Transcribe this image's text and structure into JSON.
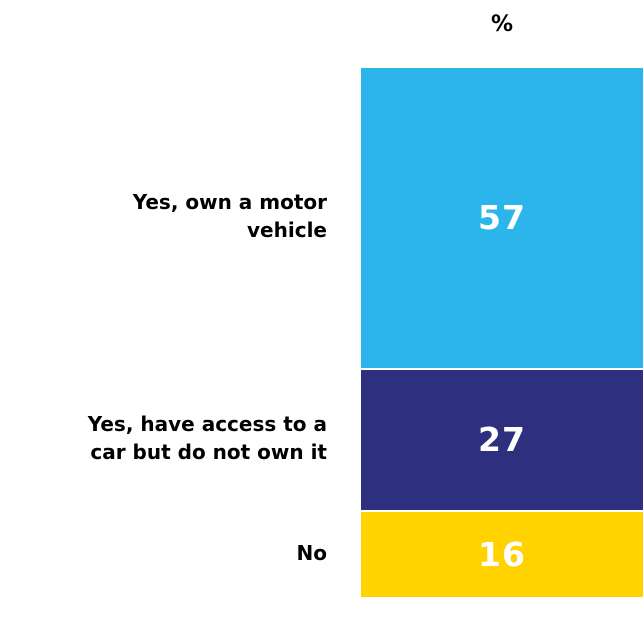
{
  "chart_data": {
    "type": "bar",
    "stacked": true,
    "orientation": "vertical-100%",
    "header": "%",
    "categories": [
      "Yes, own a motor\nvehicle",
      "Yes, have access to a\ncar but do not own it",
      "No"
    ],
    "values": [
      57,
      27,
      16
    ],
    "colors": [
      "#2BB5EA",
      "#2E2F7E",
      "#FFD200"
    ],
    "value_label_color": "#FFFFFF",
    "total": 100
  }
}
